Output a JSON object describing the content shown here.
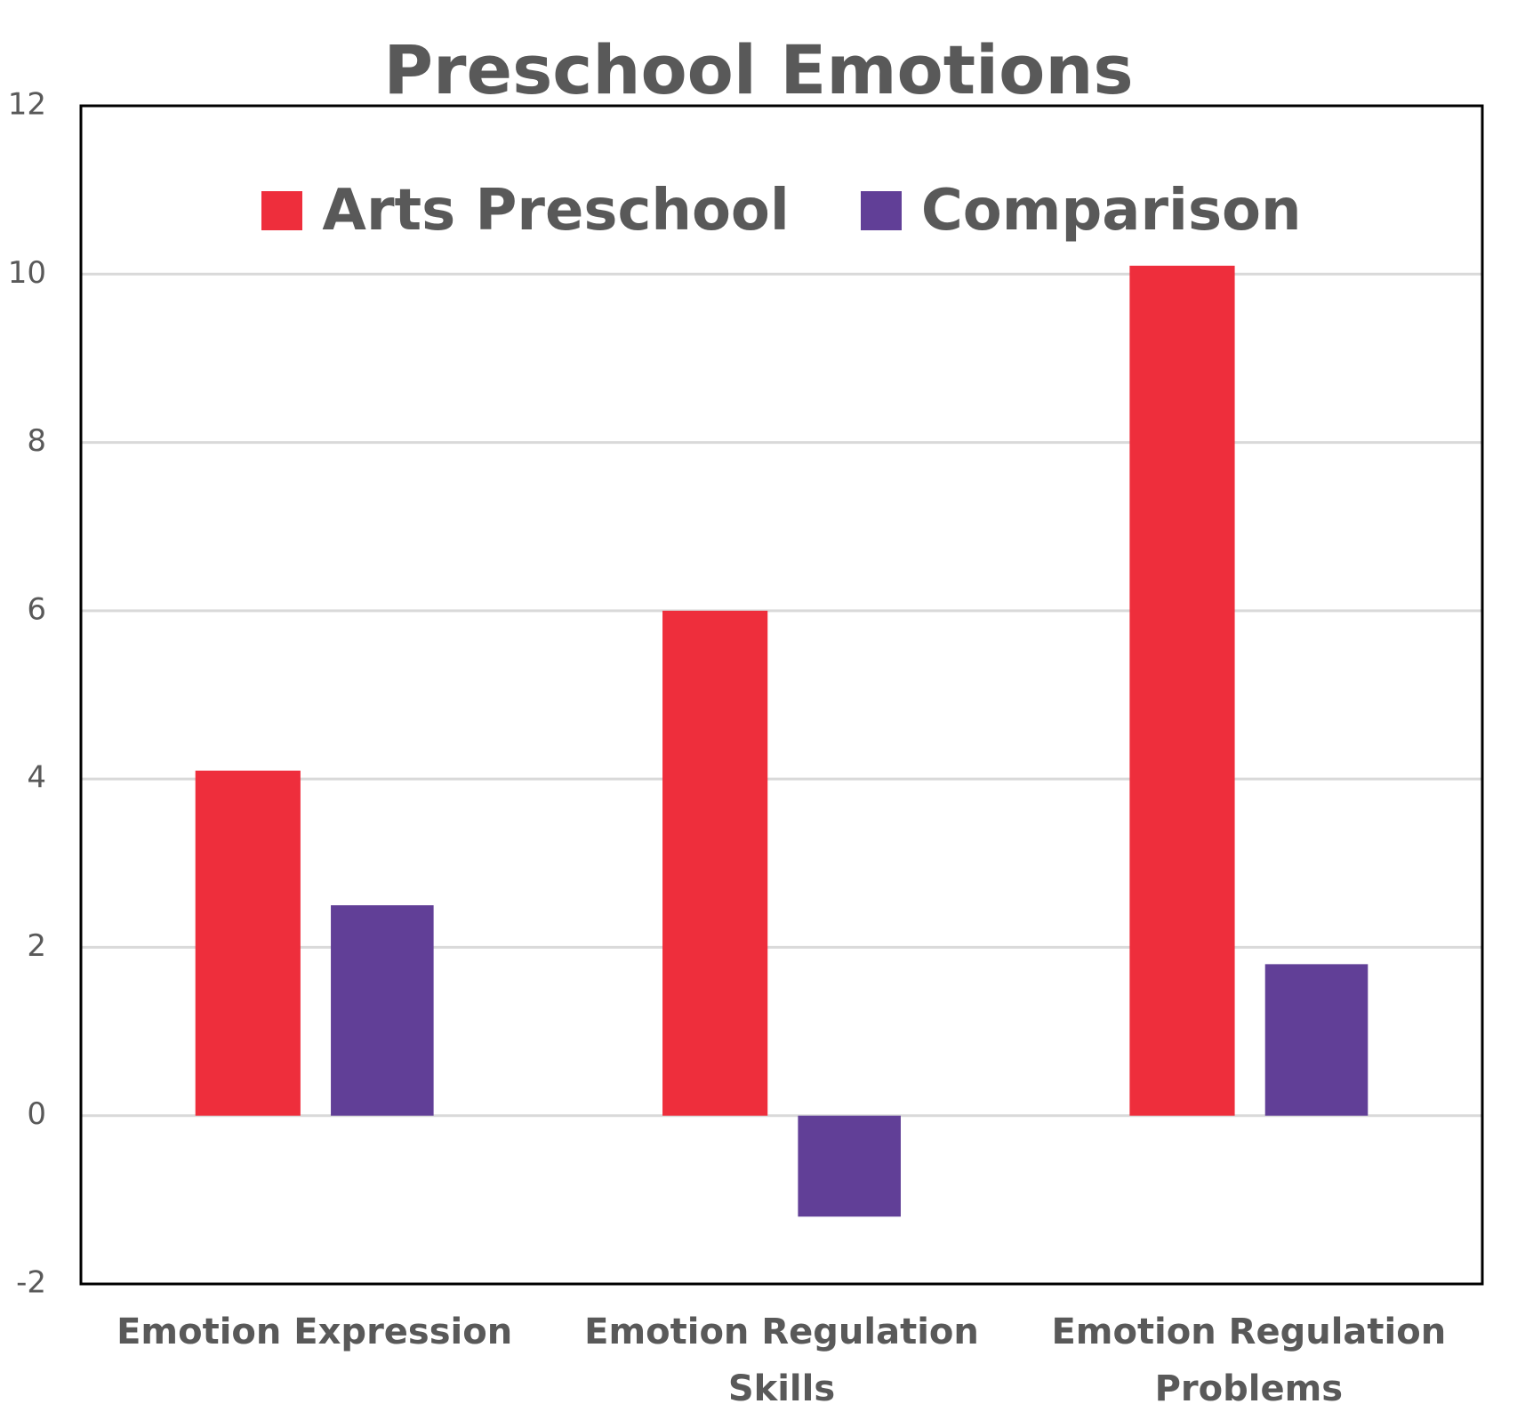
{
  "chart_data": {
    "type": "bar",
    "title": "Preschool Emotions",
    "categories": [
      "Emotion Expression",
      "Emotion Regulation Skills",
      "Emotion Regulation Problems"
    ],
    "series": [
      {
        "name": "Arts Preschool",
        "color": "#ee2e3c",
        "values": [
          4.1,
          6.0,
          10.1
        ]
      },
      {
        "name": "Comparison",
        "color": "#613f97",
        "values": [
          2.5,
          -1.2,
          1.8
        ]
      }
    ],
    "ylim": [
      -2,
      12
    ],
    "yticks": [
      -2,
      0,
      2,
      4,
      6,
      8,
      10,
      12
    ],
    "grid": true,
    "legend": "top"
  }
}
